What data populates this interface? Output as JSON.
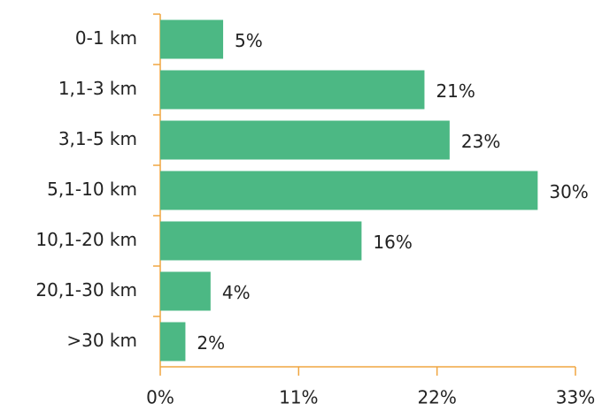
{
  "chart_data": {
    "type": "barh",
    "categories": [
      "0-1 km",
      "1,1-3 km",
      "3,1-5 km",
      "5,1-10 km",
      "10,1-20 km",
      "20,1-30 km",
      ">30 km"
    ],
    "values": [
      5,
      21,
      23,
      30,
      16,
      4,
      2
    ],
    "value_labels": [
      "5%",
      "21%",
      "23%",
      "30%",
      "16%",
      "4%",
      "2%"
    ],
    "color": "#4cb884",
    "xlim": [
      0,
      33
    ],
    "xticks": [
      {
        "value": 0,
        "label": "0%"
      },
      {
        "value": 11,
        "label": "11%"
      },
      {
        "value": 22,
        "label": "22%"
      },
      {
        "value": 33,
        "label": "33%"
      }
    ],
    "grid": false
  }
}
